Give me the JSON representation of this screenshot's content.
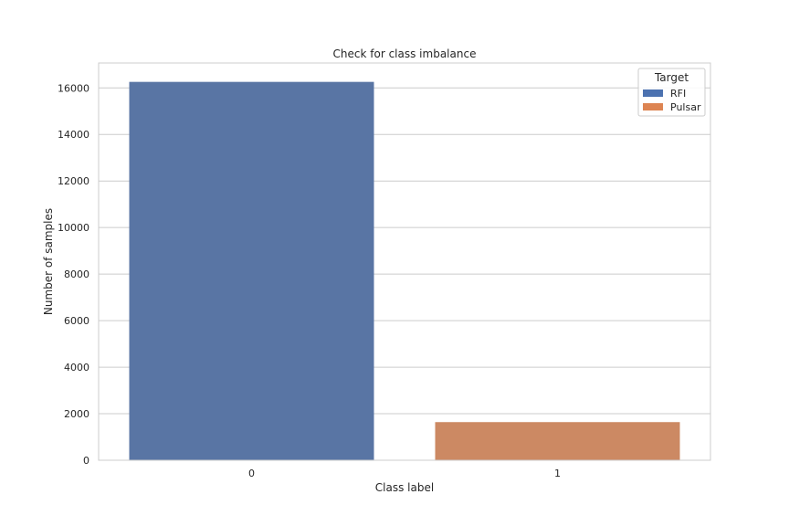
{
  "chart_data": {
    "type": "bar",
    "title": "Check for class imbalance",
    "xlabel": "Class label",
    "ylabel": "Number of samples",
    "categories": [
      "0",
      "1"
    ],
    "series": [
      {
        "name": "RFI",
        "values": [
          16259,
          null
        ],
        "color": "#5975a4"
      },
      {
        "name": "Pulsar",
        "values": [
          null,
          1639
        ],
        "color": "#cc8963"
      }
    ],
    "ylim": [
      0,
      17070
    ],
    "yticks": [
      0,
      2000,
      4000,
      6000,
      8000,
      10000,
      12000,
      14000,
      16000
    ],
    "grid": true,
    "legend": {
      "title": "Target",
      "placement": "top-right",
      "entries": [
        {
          "label": "RFI",
          "color": "#4c72b0"
        },
        {
          "label": "Pulsar",
          "color": "#dd8452"
        }
      ]
    }
  }
}
